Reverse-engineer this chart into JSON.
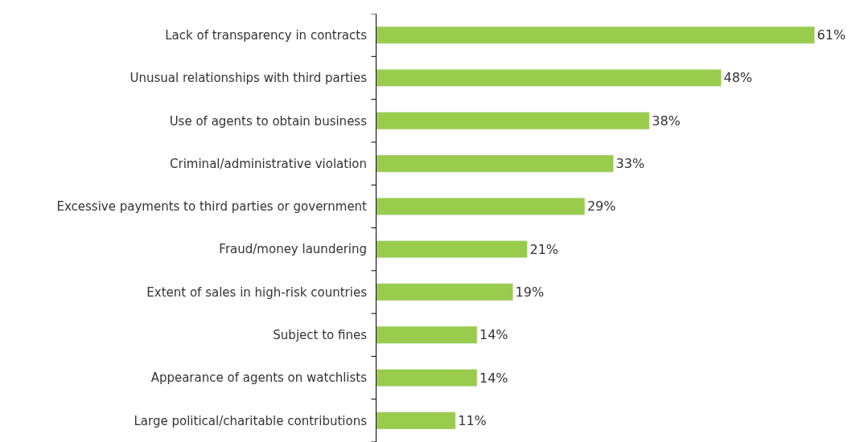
{
  "chart_data": {
    "type": "bar",
    "orientation": "horizontal",
    "categories": [
      "Lack of transparency in contracts",
      "Unusual relationships with third parties",
      "Use of agents to obtain business",
      "Criminal/administrative violation",
      "Excessive payments to third parties or government",
      "Fraud/money laundering",
      "Extent of sales in high-risk countries",
      "Subject to fines",
      "Appearance of agents on watchlists",
      "Large political/charitable contributions"
    ],
    "values": [
      61,
      48,
      38,
      33,
      29,
      21,
      19,
      14,
      14,
      11
    ],
    "value_labels": [
      "61%",
      "48%",
      "38%",
      "33%",
      "29%",
      "21%",
      "19%",
      "14%",
      "14%",
      "11%"
    ],
    "color": "#99cc4c"
  }
}
